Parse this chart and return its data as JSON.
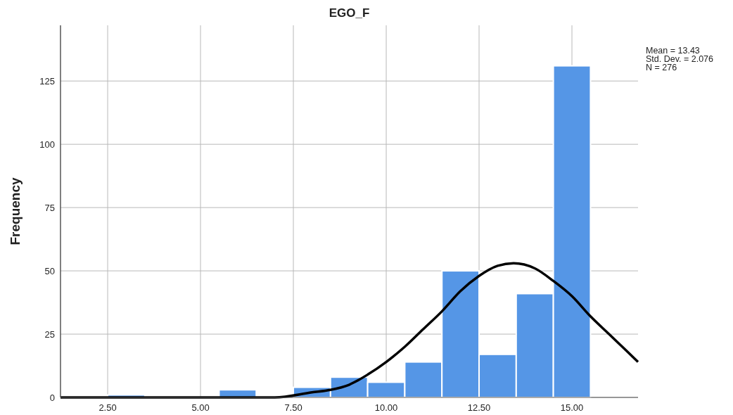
{
  "chart_data": {
    "type": "histogram",
    "title": "EGO_F",
    "ylabel": "Frequency",
    "bins": [
      2.5,
      3.5,
      4.5,
      5.5,
      6.5,
      7.5,
      8.5,
      9.5,
      10.5,
      11.5,
      12.5,
      13.5,
      14.5,
      15.5
    ],
    "values": [
      1,
      0,
      0,
      3,
      0,
      4,
      8,
      6,
      14,
      50,
      17,
      41,
      131
    ],
    "color": "#5596e6",
    "series": [
      {
        "type": "line",
        "color": "#000000",
        "x": [
          1.23,
          2.5,
          4,
          6,
          7,
          8,
          8.5,
          9,
          9.5,
          10,
          10.5,
          11,
          11.5,
          12,
          12.5,
          13,
          13.43,
          14,
          14.5,
          15,
          15.5,
          16,
          16.5,
          16.78
        ],
        "values": [
          0,
          0,
          0,
          0,
          0,
          2,
          3,
          5,
          9,
          14,
          20,
          27,
          34,
          42,
          48,
          52,
          53,
          51,
          46,
          40,
          32,
          25,
          18,
          14
        ]
      }
    ],
    "xlim": [
      1.23,
      16.78
    ],
    "ylim": [
      0,
      147
    ],
    "xticks": [
      {
        "value": 2.5,
        "label": "2.50"
      },
      {
        "value": 5,
        "label": "5.00"
      },
      {
        "value": 7.5,
        "label": "7.50"
      },
      {
        "value": 10,
        "label": "10.00"
      },
      {
        "value": 12.5,
        "label": "12.50"
      },
      {
        "value": 15,
        "label": "15.00"
      }
    ],
    "yticks": [
      0,
      25,
      50,
      75,
      100,
      125
    ],
    "grid": true,
    "marker": "none",
    "annotations": [
      "Mean = 13.43",
      "Std. Dev. = 2.076",
      "N = 276"
    ]
  }
}
